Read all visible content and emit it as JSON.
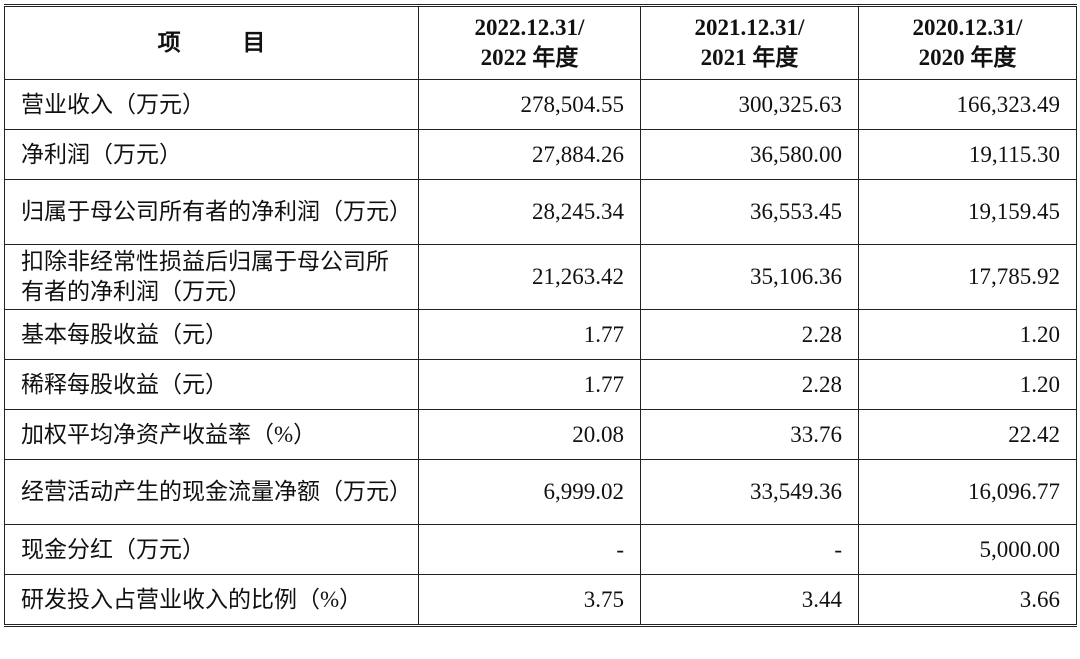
{
  "table": {
    "headers": [
      {
        "line1": "项 目",
        "line2": ""
      },
      {
        "line1": "2022.12.31/",
        "line2": "2022 年度"
      },
      {
        "line1": "2021.12.31/",
        "line2": "2021 年度"
      },
      {
        "line1": "2020.12.31/",
        "line2": "2020 年度"
      }
    ],
    "rows": [
      {
        "label": "营业收入（万元）",
        "v2022": "278,504.55",
        "v2021": "300,325.63",
        "v2020": "166,323.49"
      },
      {
        "label": "净利润（万元）",
        "v2022": "27,884.26",
        "v2021": "36,580.00",
        "v2020": "19,115.30"
      },
      {
        "label": "归属于母公司所有者的净利润（万元）",
        "v2022": "28,245.34",
        "v2021": "36,553.45",
        "v2020": "19,159.45"
      },
      {
        "label": "扣除非经常性损益后归属于母公司所有者的净利润（万元）",
        "v2022": "21,263.42",
        "v2021": "35,106.36",
        "v2020": "17,785.92"
      },
      {
        "label": "基本每股收益（元）",
        "v2022": "1.77",
        "v2021": "2.28",
        "v2020": "1.20"
      },
      {
        "label": "稀释每股收益（元）",
        "v2022": "1.77",
        "v2021": "2.28",
        "v2020": "1.20"
      },
      {
        "label": "加权平均净资产收益率（%）",
        "v2022": "20.08",
        "v2021": "33.76",
        "v2020": "22.42"
      },
      {
        "label": "经营活动产生的现金流量净额（万元）",
        "v2022": "6,999.02",
        "v2021": "33,549.36",
        "v2020": "16,096.77"
      },
      {
        "label": "现金分红（万元）",
        "v2022": "-",
        "v2021": "-",
        "v2020": "5,000.00"
      },
      {
        "label": "研发投入占营业收入的比例（%）",
        "v2022": "3.75",
        "v2021": "3.44",
        "v2020": "3.66"
      }
    ]
  }
}
